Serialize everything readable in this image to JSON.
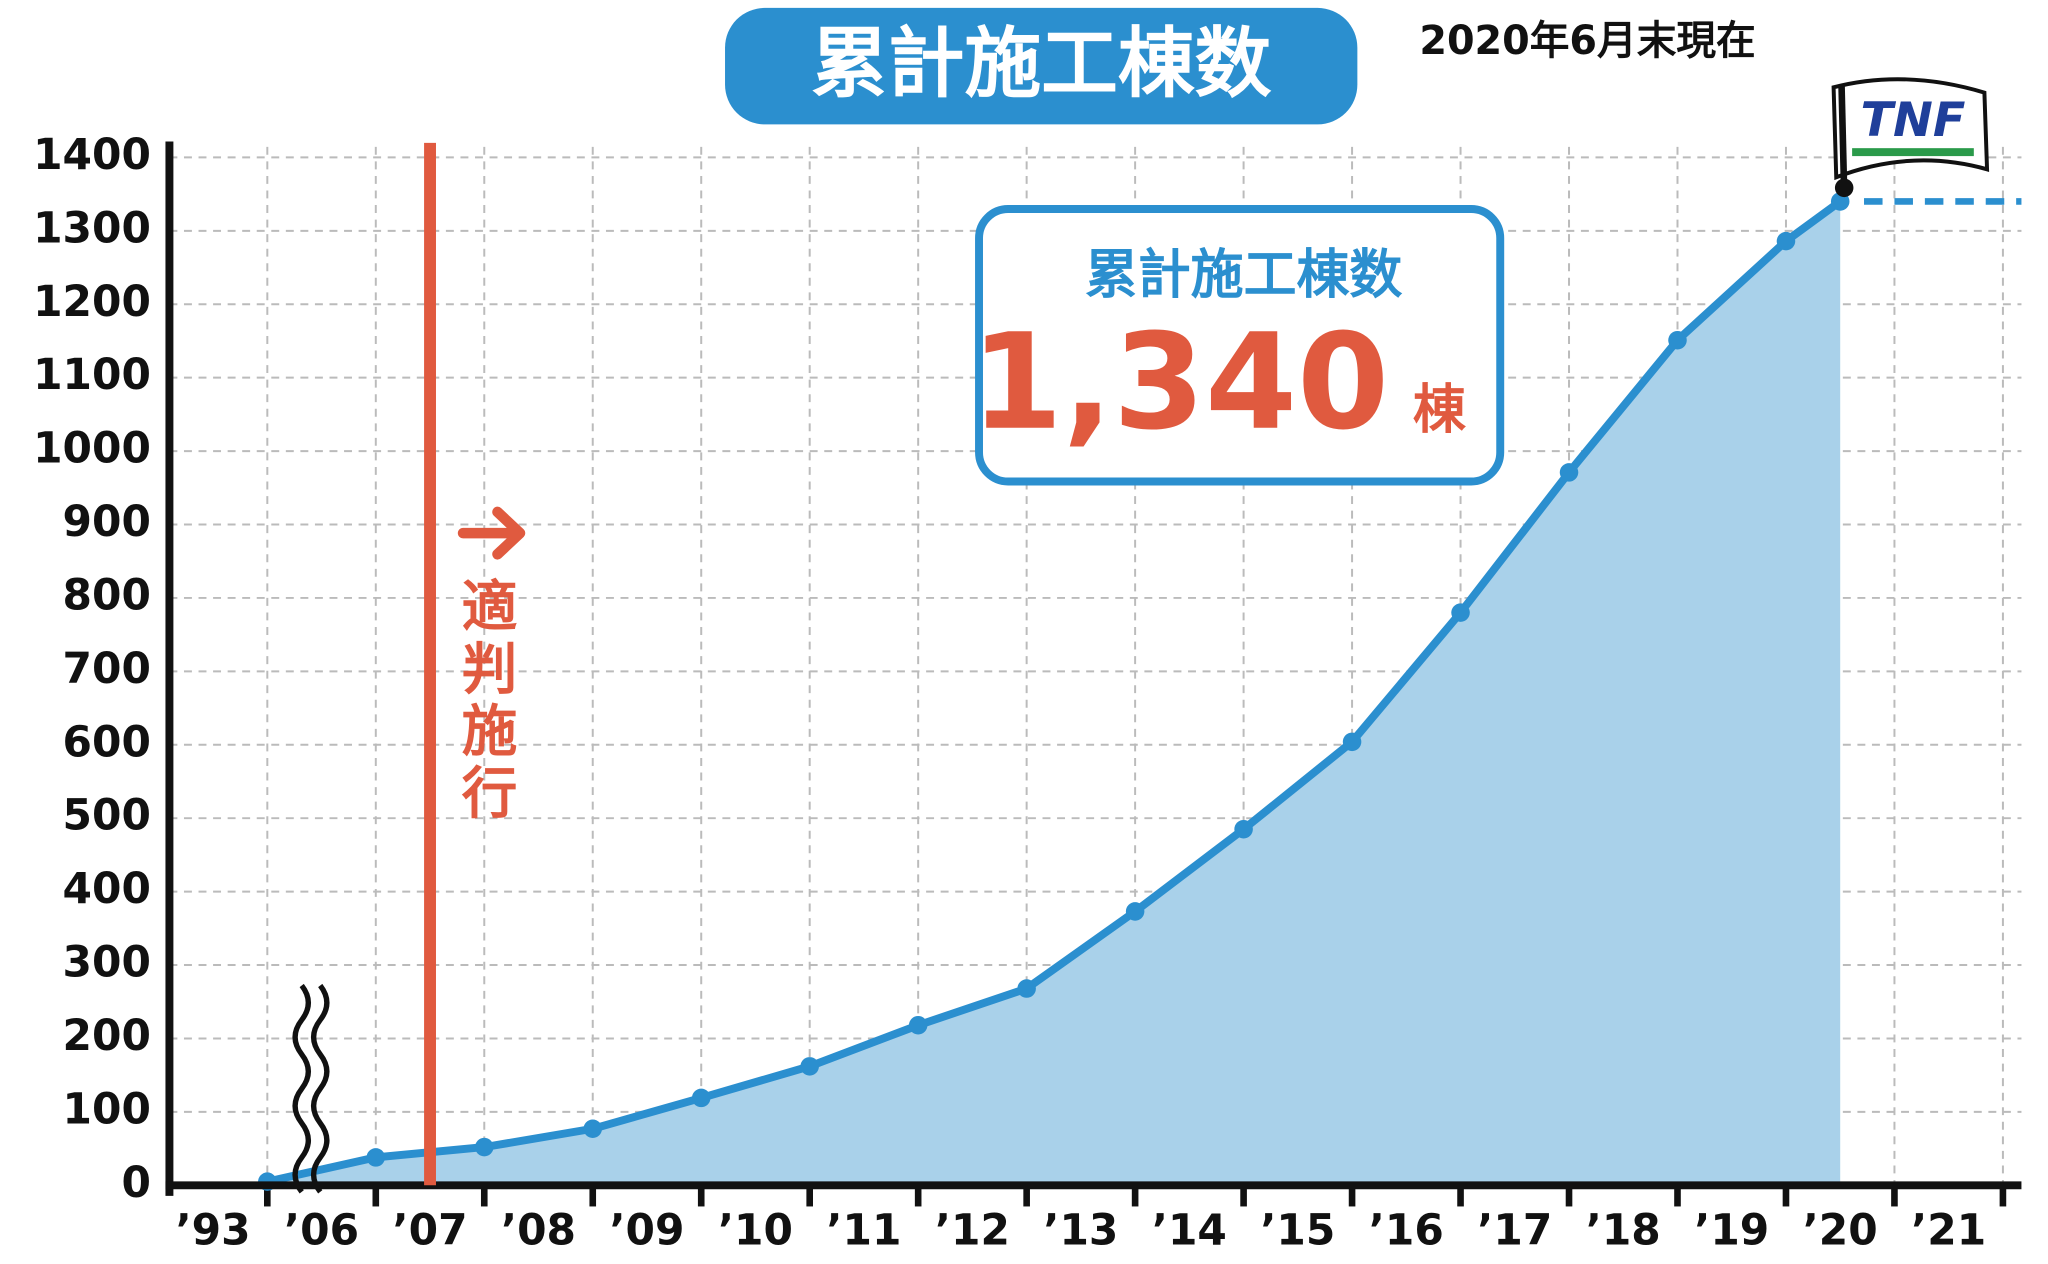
{
  "chart_data": {
    "type": "line",
    "title": "累計施工棟数",
    "subtitle": "2020年6月末現在",
    "categories": [
      "’93",
      "’06",
      "’07",
      "’08",
      "’09",
      "’10",
      "’11",
      "’12",
      "’13",
      "’14",
      "’15",
      "’16",
      "’17",
      "’18",
      "’19",
      "’20",
      "’21"
    ],
    "series": [
      {
        "name": "累計施工棟数",
        "color": "#2b8fcf",
        "values": [
          5,
          38,
          52,
          77,
          119,
          162,
          218,
          268,
          373,
          485,
          604,
          780,
          971,
          1151,
          1286,
          1340,
          null
        ]
      }
    ],
    "area_color": "#a9d1ea",
    "ylim": [
      0,
      1400
    ],
    "yticks": [
      0,
      100,
      200,
      300,
      400,
      500,
      600,
      700,
      800,
      900,
      1000,
      1100,
      1200,
      1300,
      1400
    ],
    "grid": true,
    "annotation": {
      "text": "適判施行",
      "color": "#e05a3f"
    },
    "callout": {
      "label": "累計施工棟数",
      "value": "1,340",
      "unit": "棟"
    },
    "logo": "TNF"
  }
}
